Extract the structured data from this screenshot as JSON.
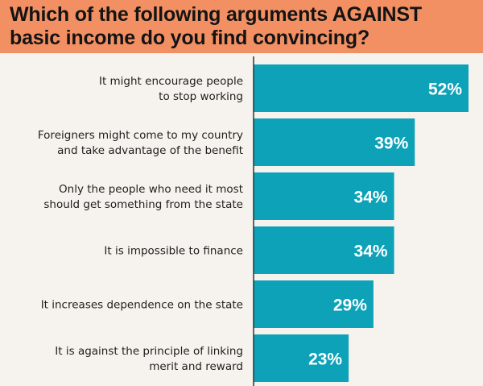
{
  "chart_data": {
    "type": "bar",
    "orientation": "horizontal",
    "title": "Which of the following arguments AGAINST basic income do you find convincing?",
    "categories": [
      [
        "It might encourage people",
        "to stop working"
      ],
      [
        "Foreigners might come to my country",
        "and take advantage of the benefit"
      ],
      [
        "Only the people who need it most",
        "should get something from the state"
      ],
      [
        "It is impossible to finance"
      ],
      [
        "It increases dependence on the state"
      ],
      [
        "It is against the principle of linking",
        "merit and reward"
      ]
    ],
    "values": [
      52,
      39,
      34,
      34,
      29,
      23
    ],
    "value_labels": [
      "52%",
      "39%",
      "34%",
      "34%",
      "29%",
      "23%"
    ],
    "unit": "%",
    "xlim": [
      0,
      52
    ],
    "grid": false,
    "legend": "none",
    "colors": {
      "bar": "#0ea2b8",
      "title_band": "#f29063",
      "background": "#f6f3ee",
      "axis": "#333333"
    }
  }
}
